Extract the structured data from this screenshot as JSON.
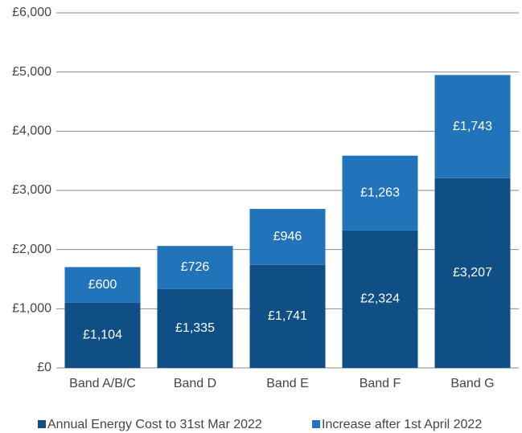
{
  "chart_data": {
    "type": "stacked_bar",
    "categories": [
      "Band A/B/C",
      "Band D",
      "Band E",
      "Band F",
      "Band G"
    ],
    "series": [
      {
        "name": "Annual Energy Cost to 31st Mar 2022",
        "color": "#0f4f86",
        "values": [
          1104,
          1335,
          1741,
          2324,
          3207
        ],
        "value_labels": [
          "£1,104",
          "£1,335",
          "£1,741",
          "£2,324",
          "£3,207"
        ]
      },
      {
        "name": "Increase after 1st April 2022",
        "color": "#2274ba",
        "values": [
          600,
          726,
          946,
          1263,
          1743
        ],
        "value_labels": [
          "£600",
          "£726",
          "£946",
          "£1,263",
          "£1,743"
        ]
      }
    ],
    "ylim": [
      0,
      6000
    ],
    "yticks": [
      {
        "value": 0,
        "label": "£0"
      },
      {
        "value": 1000,
        "label": "£1,000"
      },
      {
        "value": 2000,
        "label": "£2,000"
      },
      {
        "value": 3000,
        "label": "£3,000"
      },
      {
        "value": 4000,
        "label": "£4,000"
      },
      {
        "value": 5000,
        "label": "£5,000"
      },
      {
        "value": 6000,
        "label": "£6,000"
      }
    ],
    "grid": true,
    "legend": "bottom"
  }
}
